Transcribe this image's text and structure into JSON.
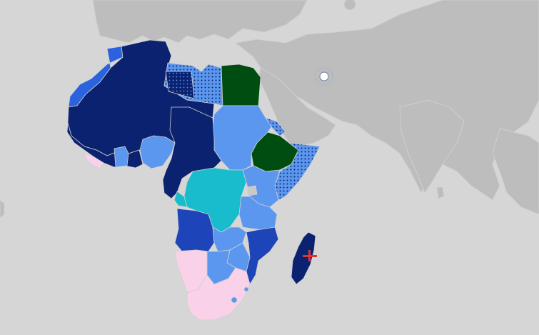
{
  "map": {
    "colors": {
      "ocean": "#d6d6d6",
      "land_other": "#bdbdbd",
      "border_light": "#cfcfcf",
      "dark_navy": "#0b2270",
      "royal_blue": "#1d44b8",
      "medium_blue": "#2a63dd",
      "light_blue": "#5b97ee",
      "cyan": "#18bccd",
      "dark_green": "#004d12",
      "pink": "#f9d1e8",
      "lake": "#c9c9c9",
      "marker_red": "#e03434"
    },
    "patterns": [
      "dotted-light-blue",
      "dotted-dark-navy"
    ],
    "markers": [
      "location-marker",
      "map-pin-icon"
    ]
  }
}
